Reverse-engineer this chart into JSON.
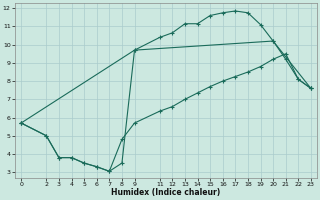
{
  "xlabel": "Humidex (Indice chaleur)",
  "bg_color": "#cce8e0",
  "line_color": "#1a6b5a",
  "grid_color": "#aacccc",
  "xlim": [
    -0.5,
    23.5
  ],
  "ylim": [
    2.7,
    12.3
  ],
  "xticks": [
    0,
    2,
    3,
    4,
    5,
    6,
    7,
    8,
    9,
    11,
    12,
    13,
    14,
    15,
    16,
    17,
    18,
    19,
    20,
    21,
    22,
    23
  ],
  "yticks": [
    3,
    4,
    5,
    6,
    7,
    8,
    9,
    10,
    11,
    12
  ],
  "line1_x": [
    0,
    2,
    3,
    4,
    5,
    6,
    7,
    8,
    9,
    11,
    12,
    13,
    14,
    15,
    16,
    17,
    18,
    19,
    20,
    21,
    22,
    23
  ],
  "line1_y": [
    5.7,
    5.0,
    3.8,
    3.8,
    3.5,
    3.3,
    3.05,
    3.5,
    9.7,
    10.4,
    10.65,
    11.15,
    11.15,
    11.6,
    11.75,
    11.85,
    11.75,
    11.1,
    10.2,
    9.2,
    8.1,
    7.6
  ],
  "line2_x": [
    0,
    2,
    3,
    4,
    5,
    6,
    7,
    8,
    9,
    11,
    12,
    13,
    14,
    15,
    16,
    17,
    18,
    19,
    20,
    21,
    22,
    23
  ],
  "line2_y": [
    5.7,
    5.0,
    3.8,
    3.8,
    3.5,
    3.3,
    3.05,
    4.8,
    5.7,
    6.35,
    6.6,
    7.0,
    7.35,
    7.7,
    8.0,
    8.25,
    8.5,
    8.8,
    9.2,
    9.5,
    8.1,
    7.6
  ],
  "line3_x": [
    0,
    9,
    20,
    23
  ],
  "line3_y": [
    5.7,
    9.7,
    10.2,
    7.6
  ]
}
